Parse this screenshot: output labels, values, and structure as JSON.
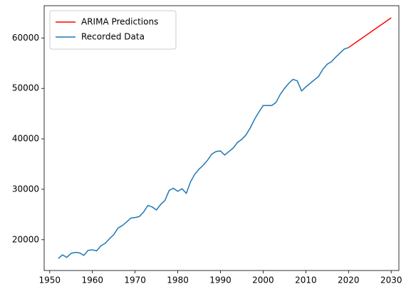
{
  "chart_data": {
    "type": "line",
    "legend": "upper left",
    "xlim": [
      1948.7,
      2031.8
    ],
    "ylim": [
      13900,
      66400
    ],
    "xticks": [
      1950,
      1960,
      1970,
      1980,
      1990,
      2000,
      2010,
      2020,
      2030
    ],
    "yticks": [
      20000,
      30000,
      40000,
      50000,
      60000
    ],
    "grid": false,
    "series": [
      {
        "name": "ARIMA Predictions",
        "color": "#ff0000",
        "x": [
          2020,
          2030
        ],
        "values": [
          58100,
          64000
        ]
      },
      {
        "name": "Recorded Data",
        "color": "#1f77b4",
        "x": [
          1952,
          1953,
          1954,
          1955,
          1956,
          1957,
          1958,
          1959,
          1960,
          1961,
          1962,
          1963,
          1964,
          1965,
          1966,
          1967,
          1968,
          1969,
          1970,
          1971,
          1972,
          1973,
          1974,
          1975,
          1976,
          1977,
          1978,
          1979,
          1980,
          1981,
          1982,
          1983,
          1984,
          1985,
          1986,
          1987,
          1988,
          1989,
          1990,
          1991,
          1992,
          1993,
          1994,
          1995,
          1996,
          1997,
          1998,
          1999,
          2000,
          2001,
          2002,
          2003,
          2004,
          2005,
          2006,
          2007,
          2008,
          2009,
          2010,
          2011,
          2012,
          2013,
          2014,
          2015,
          2016,
          2017,
          2018,
          2019,
          2020
        ],
        "values": [
          16300,
          17000,
          16500,
          17300,
          17500,
          17400,
          16900,
          17900,
          18000,
          17800,
          18800,
          19300,
          20200,
          21000,
          22300,
          22800,
          23500,
          24300,
          24400,
          24600,
          25500,
          26800,
          26500,
          25900,
          27000,
          27800,
          29800,
          30200,
          29600,
          30100,
          29200,
          31500,
          33000,
          34000,
          34800,
          35800,
          37000,
          37500,
          37600,
          36800,
          37500,
          38200,
          39300,
          39900,
          40800,
          42200,
          43900,
          45300,
          46600,
          46600,
          46600,
          47200,
          48800,
          50000,
          51000,
          51800,
          51500,
          49500,
          50300,
          51000,
          51700,
          52400,
          53800,
          54800,
          55300,
          56200,
          57000,
          57800,
          58100
        ]
      }
    ]
  }
}
